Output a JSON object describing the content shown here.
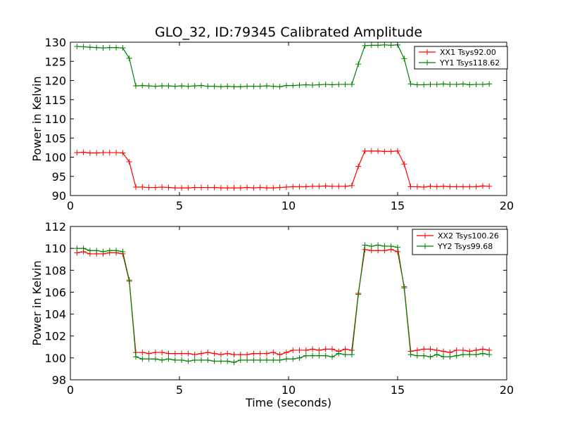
{
  "chart_data": [
    {
      "type": "line",
      "title": "GLO_32, ID:79345 Calibrated Amplitude",
      "xlabel": "",
      "ylabel": "Power in Kelvin",
      "xlim": [
        0,
        20
      ],
      "ylim": [
        90,
        130
      ],
      "xticks": [
        0,
        5,
        10,
        15,
        20
      ],
      "yticks": [
        90,
        95,
        100,
        105,
        110,
        115,
        120,
        125,
        130
      ],
      "grid": false,
      "legend_position": "top-right",
      "x": [
        0.3,
        0.6,
        0.9,
        1.2,
        1.5,
        1.8,
        2.1,
        2.4,
        2.7,
        3.0,
        3.3,
        3.6,
        3.9,
        4.2,
        4.5,
        4.8,
        5.1,
        5.4,
        5.7,
        6.0,
        6.3,
        6.6,
        6.9,
        7.2,
        7.5,
        7.8,
        8.1,
        8.4,
        8.7,
        9.0,
        9.3,
        9.6,
        9.9,
        10.2,
        10.5,
        10.8,
        11.1,
        11.4,
        11.7,
        12.0,
        12.3,
        12.6,
        12.9,
        13.2,
        13.5,
        13.8,
        14.1,
        14.4,
        14.7,
        15.0,
        15.3,
        15.6,
        15.9,
        16.2,
        16.5,
        16.8,
        17.1,
        17.4,
        17.7,
        18.0,
        18.3,
        18.6,
        18.9,
        19.2
      ],
      "series": [
        {
          "name": "XX1 Tsys92.00",
          "color": "#ff0000",
          "values": [
            101.2,
            101.3,
            101.1,
            101.1,
            101.2,
            101.2,
            101.2,
            101.1,
            98.8,
            92.2,
            92.2,
            92.1,
            92.1,
            92.2,
            92.1,
            92.0,
            92.0,
            92.0,
            92.1,
            92.1,
            92.1,
            92.1,
            92.0,
            92.0,
            92.0,
            92.0,
            92.1,
            92.0,
            92.1,
            92.0,
            92.0,
            92.1,
            92.2,
            92.3,
            92.3,
            92.3,
            92.4,
            92.4,
            92.5,
            92.4,
            92.4,
            92.4,
            92.6,
            97.6,
            101.6,
            101.6,
            101.6,
            101.5,
            101.5,
            101.6,
            98.2,
            92.3,
            92.3,
            92.2,
            92.4,
            92.3,
            92.4,
            92.3,
            92.3,
            92.3,
            92.3,
            92.3,
            92.5,
            92.4
          ]
        },
        {
          "name": "YY1 Tsys118.62",
          "color": "#008000",
          "values": [
            128.9,
            128.8,
            128.7,
            128.6,
            128.5,
            128.6,
            128.6,
            128.5,
            125.8,
            118.6,
            118.7,
            118.6,
            118.5,
            118.6,
            118.6,
            118.5,
            118.6,
            118.5,
            118.6,
            118.7,
            118.5,
            118.5,
            118.4,
            118.5,
            118.4,
            118.4,
            118.5,
            118.5,
            118.5,
            118.6,
            118.5,
            118.4,
            118.7,
            118.7,
            118.8,
            118.9,
            118.8,
            118.9,
            119.0,
            118.9,
            119.0,
            119.0,
            119.0,
            124.3,
            129.1,
            129.2,
            129.2,
            129.3,
            129.2,
            129.3,
            125.7,
            119.1,
            118.9,
            118.9,
            119.0,
            119.0,
            119.1,
            119.0,
            119.0,
            119.1,
            118.9,
            119.0,
            119.0,
            119.1
          ]
        }
      ]
    },
    {
      "type": "line",
      "title": "",
      "xlabel": "Time (seconds)",
      "ylabel": "Power in Kelvin",
      "xlim": [
        0,
        20
      ],
      "ylim": [
        98,
        112
      ],
      "xticks": [
        0,
        5,
        10,
        15,
        20
      ],
      "yticks": [
        98,
        100,
        102,
        104,
        106,
        108,
        110,
        112
      ],
      "grid": false,
      "legend_position": "top-right",
      "x": [
        0.3,
        0.6,
        0.9,
        1.2,
        1.5,
        1.8,
        2.1,
        2.4,
        2.7,
        3.0,
        3.3,
        3.6,
        3.9,
        4.2,
        4.5,
        4.8,
        5.1,
        5.4,
        5.7,
        6.0,
        6.3,
        6.6,
        6.9,
        7.2,
        7.5,
        7.8,
        8.1,
        8.4,
        8.7,
        9.0,
        9.3,
        9.6,
        9.9,
        10.2,
        10.5,
        10.8,
        11.1,
        11.4,
        11.7,
        12.0,
        12.3,
        12.6,
        12.9,
        13.2,
        13.5,
        13.8,
        14.1,
        14.4,
        14.7,
        15.0,
        15.3,
        15.6,
        15.9,
        16.2,
        16.5,
        16.8,
        17.1,
        17.4,
        17.7,
        18.0,
        18.3,
        18.6,
        18.9,
        19.2
      ],
      "series": [
        {
          "name": "XX2 Tsys100.26",
          "color": "#ff0000",
          "values": [
            109.6,
            109.7,
            109.5,
            109.5,
            109.5,
            109.6,
            109.6,
            109.5,
            107.0,
            100.5,
            100.5,
            100.4,
            100.5,
            100.5,
            100.4,
            100.4,
            100.4,
            100.4,
            100.3,
            100.4,
            100.5,
            100.4,
            100.3,
            100.4,
            100.3,
            100.3,
            100.3,
            100.4,
            100.4,
            100.4,
            100.5,
            100.3,
            100.5,
            100.7,
            100.7,
            100.7,
            100.8,
            100.7,
            100.8,
            100.8,
            100.6,
            100.8,
            100.7,
            105.9,
            109.9,
            109.8,
            109.8,
            109.8,
            109.9,
            109.7,
            106.5,
            100.6,
            100.7,
            100.8,
            100.8,
            100.7,
            100.6,
            100.5,
            100.7,
            100.7,
            100.6,
            100.7,
            100.8,
            100.7
          ]
        },
        {
          "name": "YY2 Tsys99.68",
          "color": "#008000",
          "values": [
            110.0,
            110.0,
            109.8,
            109.8,
            109.7,
            109.8,
            109.8,
            109.7,
            107.1,
            100.1,
            99.9,
            99.9,
            99.9,
            99.8,
            99.9,
            99.8,
            99.8,
            99.7,
            99.8,
            99.8,
            99.8,
            99.7,
            99.7,
            99.7,
            99.6,
            99.8,
            99.8,
            99.8,
            99.8,
            99.8,
            99.8,
            99.8,
            99.9,
            99.9,
            100.0,
            100.2,
            100.2,
            100.2,
            100.2,
            100.1,
            100.4,
            100.3,
            100.3,
            105.8,
            110.3,
            110.2,
            110.3,
            110.2,
            110.2,
            110.1,
            106.4,
            100.3,
            100.2,
            100.2,
            100.1,
            100.3,
            100.1,
            100.1,
            100.2,
            100.3,
            100.3,
            100.3,
            100.4,
            100.3
          ]
        }
      ]
    }
  ]
}
